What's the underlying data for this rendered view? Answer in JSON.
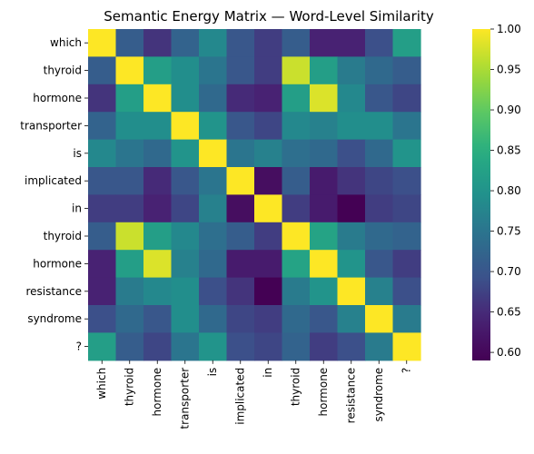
{
  "chart_data": {
    "type": "heatmap",
    "title": "Semantic Energy Matrix — Word-Level Similarity",
    "x_labels": [
      "which",
      "thyroid",
      "hormone",
      "transporter",
      "is",
      "implicated",
      "in",
      "thyroid",
      "hormone",
      "resistance",
      "syndrome",
      "?"
    ],
    "y_labels": [
      "which",
      "thyroid",
      "hormone",
      "transporter",
      "is",
      "implicated",
      "in",
      "thyroid",
      "hormone",
      "resistance",
      "syndrome",
      "?"
    ],
    "values": [
      [
        1.0,
        0.71,
        0.66,
        0.72,
        0.78,
        0.7,
        0.67,
        0.71,
        0.64,
        0.64,
        0.69,
        0.82
      ],
      [
        0.71,
        1.0,
        0.82,
        0.79,
        0.75,
        0.7,
        0.67,
        0.97,
        0.82,
        0.76,
        0.73,
        0.71
      ],
      [
        0.66,
        0.82,
        1.0,
        0.79,
        0.73,
        0.65,
        0.64,
        0.82,
        0.98,
        0.78,
        0.7,
        0.68
      ],
      [
        0.72,
        0.79,
        0.79,
        1.0,
        0.8,
        0.7,
        0.68,
        0.78,
        0.77,
        0.79,
        0.79,
        0.75
      ],
      [
        0.78,
        0.75,
        0.73,
        0.8,
        1.0,
        0.75,
        0.77,
        0.74,
        0.73,
        0.69,
        0.73,
        0.8
      ],
      [
        0.7,
        0.7,
        0.65,
        0.7,
        0.75,
        1.0,
        0.61,
        0.71,
        0.63,
        0.66,
        0.68,
        0.69
      ],
      [
        0.67,
        0.67,
        0.64,
        0.68,
        0.77,
        0.61,
        1.0,
        0.67,
        0.63,
        0.59,
        0.67,
        0.68
      ],
      [
        0.71,
        0.97,
        0.82,
        0.78,
        0.74,
        0.71,
        0.67,
        1.0,
        0.83,
        0.76,
        0.73,
        0.72
      ],
      [
        0.64,
        0.82,
        0.98,
        0.77,
        0.73,
        0.63,
        0.63,
        0.83,
        1.0,
        0.8,
        0.7,
        0.67
      ],
      [
        0.64,
        0.76,
        0.78,
        0.79,
        0.69,
        0.66,
        0.59,
        0.76,
        0.8,
        1.0,
        0.77,
        0.69
      ],
      [
        0.69,
        0.73,
        0.7,
        0.79,
        0.73,
        0.68,
        0.67,
        0.73,
        0.7,
        0.77,
        1.0,
        0.76
      ],
      [
        0.82,
        0.71,
        0.68,
        0.75,
        0.8,
        0.69,
        0.68,
        0.72,
        0.67,
        0.69,
        0.76,
        1.0
      ]
    ],
    "colormap": "viridis",
    "vmin": 0.59,
    "vmax": 1.0,
    "colorbar_ticks": [
      "0.60",
      "0.65",
      "0.70",
      "0.75",
      "0.80",
      "0.85",
      "0.90",
      "0.95",
      "1.00"
    ],
    "colorbar_tick_values": [
      0.6,
      0.65,
      0.7,
      0.75,
      0.8,
      0.85,
      0.9,
      0.95,
      1.0
    ],
    "xlabel": "",
    "ylabel": "",
    "grid": false
  }
}
